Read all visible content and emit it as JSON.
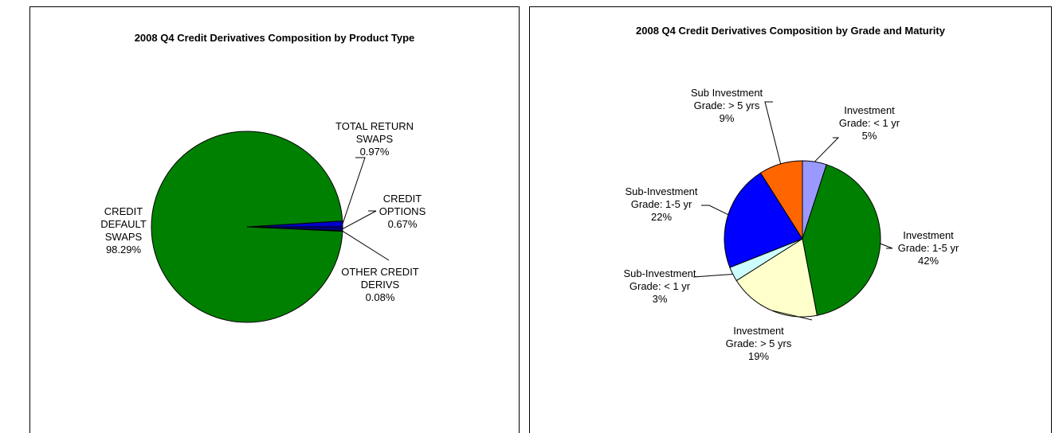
{
  "chart_data": [
    {
      "type": "pie",
      "title": "2008 Q4 Credit Derivatives Composition by Product Type",
      "categories": [
        "TOTAL RETURN SWAPS",
        "CREDIT OPTIONS",
        "OTHER CREDIT DERIVS",
        "CREDIT DEFAULT SWAPS"
      ],
      "values": [
        0.97,
        0.67,
        0.08,
        98.29
      ],
      "value_labels": [
        "0.97%",
        "0.67%",
        "0.08%",
        "98.29%"
      ],
      "colors": [
        "#0000cc",
        "#000080",
        "#333399",
        "#008000"
      ]
    },
    {
      "type": "pie",
      "title": "2008 Q4 Credit Derivatives Composition by Grade and Maturity",
      "categories": [
        "Investment Grade: < 1 yr",
        "Investment Grade: 1-5 yr",
        "Investment Grade: > 5 yrs",
        "Sub-Investment Grade: < 1 yr",
        "Sub-Investment Grade: 1-5 yr",
        "Sub Investment Grade: > 5 yrs"
      ],
      "values": [
        5,
        42,
        19,
        3,
        22,
        9
      ],
      "value_labels": [
        "5%",
        "42%",
        "19%",
        "3%",
        "22%",
        "9%"
      ],
      "colors": [
        "#9999ff",
        "#008000",
        "#ffffcc",
        "#ccffff",
        "#0000ff",
        "#ff6600"
      ]
    }
  ]
}
